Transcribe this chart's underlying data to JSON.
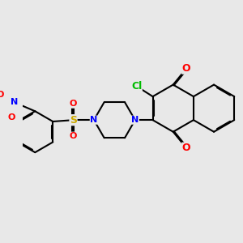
{
  "bg_color": "#e8e8e8",
  "bond_color": "#000000",
  "bond_lw": 1.5,
  "dbl_off": 0.013,
  "colors": {
    "O": "#ff0000",
    "N": "#0000ff",
    "Cl": "#00bb00",
    "S": "#ccaa00"
  },
  "fs": 9.0,
  "fs_small": 8.0
}
